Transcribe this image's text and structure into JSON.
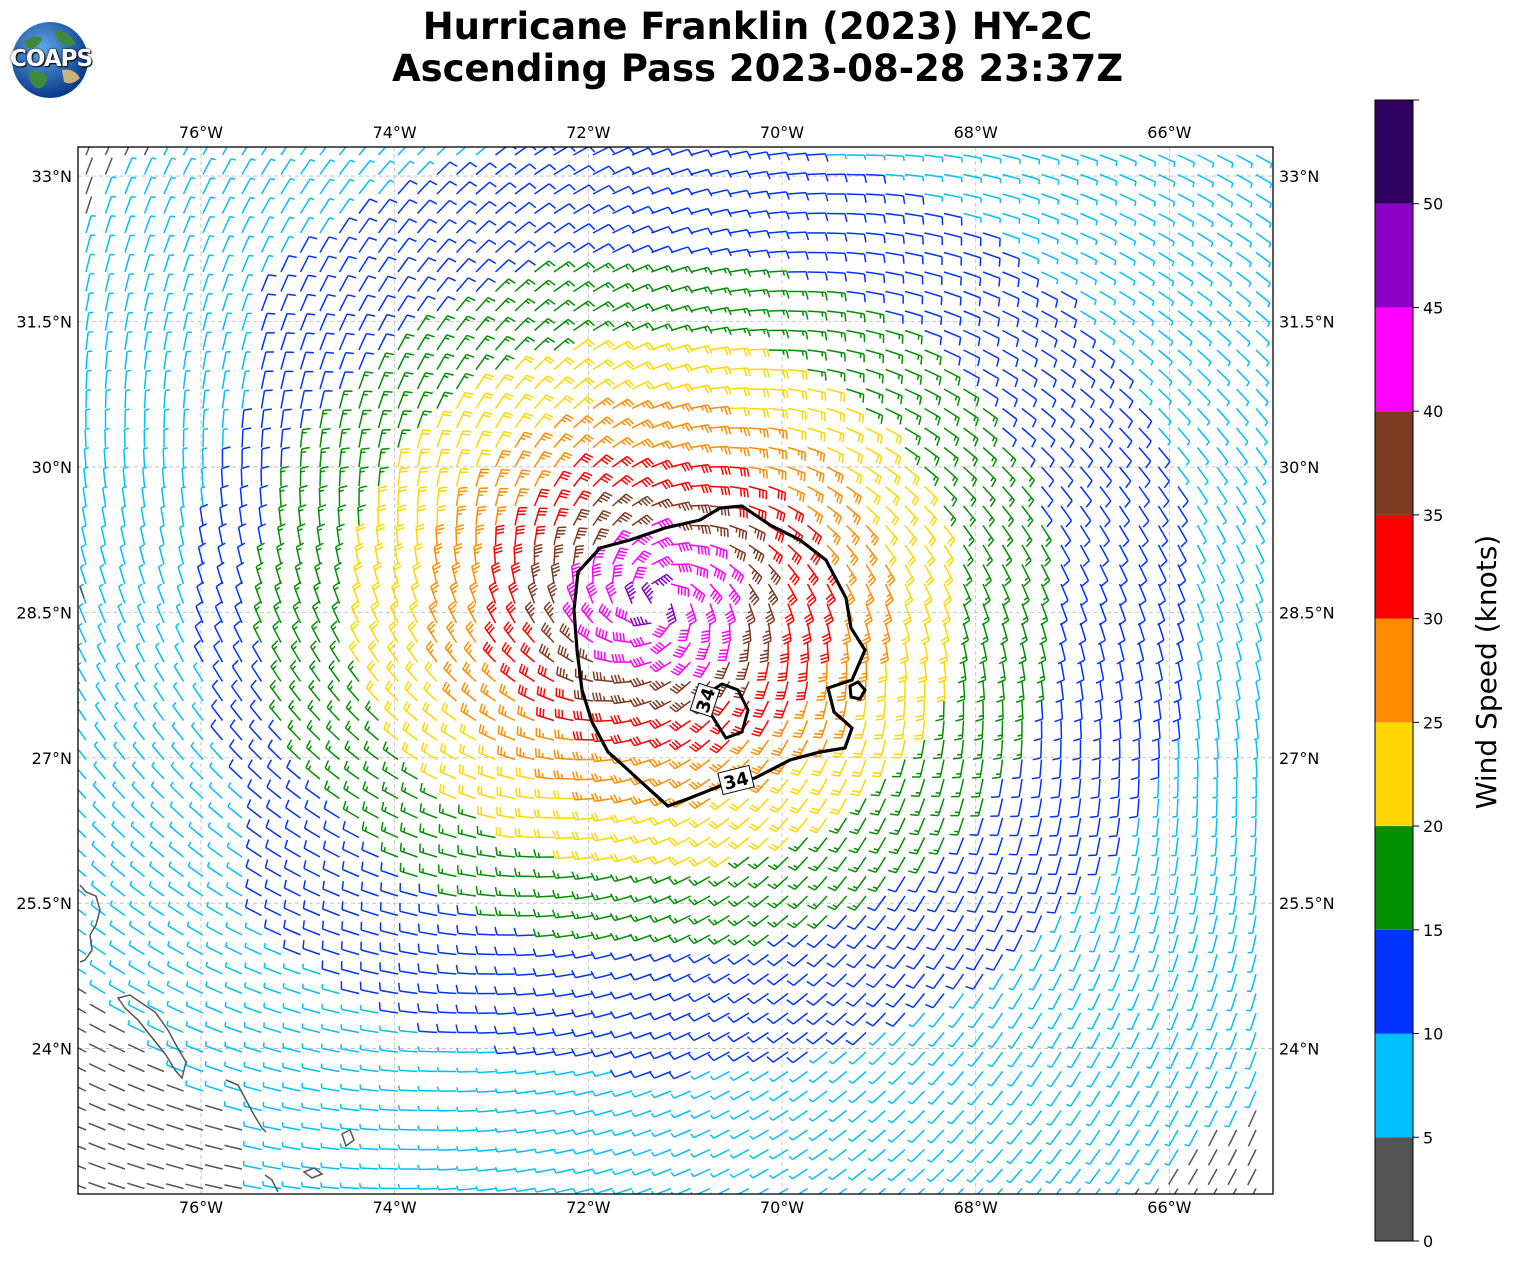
{
  "title": {
    "line1": "Hurricane Franklin (2023) HY-2C",
    "line2": "Ascending Pass 2023-08-28 23:37Z"
  },
  "logo": {
    "text": "COAPS",
    "icon": "globe-logo-icon"
  },
  "map": {
    "lon_ticks": [
      "76°W",
      "74°W",
      "72°W",
      "70°W",
      "68°W",
      "66°W"
    ],
    "lat_ticks": [
      "33°N",
      "31.5°N",
      "30°N",
      "28.5°N",
      "27°N",
      "25.5°N",
      "24°N"
    ],
    "extent": {
      "lon": [
        -77.27,
        -64.93
      ],
      "lat": [
        22.5,
        33.3
      ]
    },
    "center": {
      "lon": -71.3,
      "lat": 28.6
    },
    "contour": {
      "level": "34",
      "label": "34",
      "color": "#000000"
    },
    "coastline_color": "#555555"
  },
  "colorbar": {
    "label": "Wind Speed (knots)",
    "ticks": [
      "0",
      "5",
      "10",
      "15",
      "20",
      "25",
      "30",
      "35",
      "40",
      "45",
      "50"
    ],
    "bins": [
      {
        "min": 0,
        "max": 5,
        "color": "#555555"
      },
      {
        "min": 5,
        "max": 10,
        "color": "#00bfff"
      },
      {
        "min": 10,
        "max": 15,
        "color": "#0033ff"
      },
      {
        "min": 15,
        "max": 20,
        "color": "#009000"
      },
      {
        "min": 20,
        "max": 25,
        "color": "#ffd700"
      },
      {
        "min": 25,
        "max": 30,
        "color": "#ff8c00"
      },
      {
        "min": 30,
        "max": 35,
        "color": "#ff0000"
      },
      {
        "min": 35,
        "max": 40,
        "color": "#7f3a22"
      },
      {
        "min": 40,
        "max": 45,
        "color": "#ff00ff"
      },
      {
        "min": 45,
        "max": 50,
        "color": "#8a00c4"
      },
      {
        "min": 50,
        "max": 55,
        "color": "#2e0060"
      }
    ]
  }
}
